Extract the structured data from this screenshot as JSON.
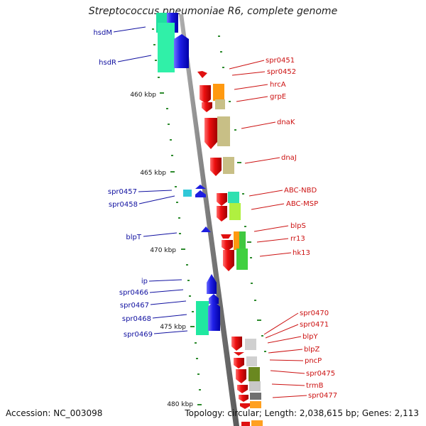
{
  "title": "Streptococcus pneumoniae R6, complete genome",
  "accession": "Accession: NC_003098",
  "topology": "Topology: circular; Length: 2,038,615 bp; Genes: 2,113",
  "colors": {
    "backbone": "#8a8a8a",
    "tick": "#2e8b2e",
    "left_label": "#1010a0",
    "right_label": "#cc1111",
    "forward_gene": "#1e1ee0",
    "reverse_gene": "#e01010"
  },
  "kbp_labels": [
    "460 kbp",
    "465 kbp",
    "470 kbp",
    "475 kbp",
    "480 kbp"
  ],
  "left_genes": [
    "hsdM",
    "hsdR",
    "spr0457",
    "spr0458",
    "blpT",
    "ip",
    "spr0466",
    "spr0467",
    "spr0468",
    "spr0469"
  ],
  "right_genes": [
    "spr0451",
    "spr0452",
    "hrcA",
    "grpE",
    "dnaK",
    "dnaJ",
    "ABC-NBD",
    "ABC-MSP",
    "blpS",
    "rr13",
    "hk13",
    "spr0470",
    "spr0471",
    "blpY",
    "blpZ",
    "pncP",
    "spr0475",
    "trmB",
    "spr0477"
  ]
}
